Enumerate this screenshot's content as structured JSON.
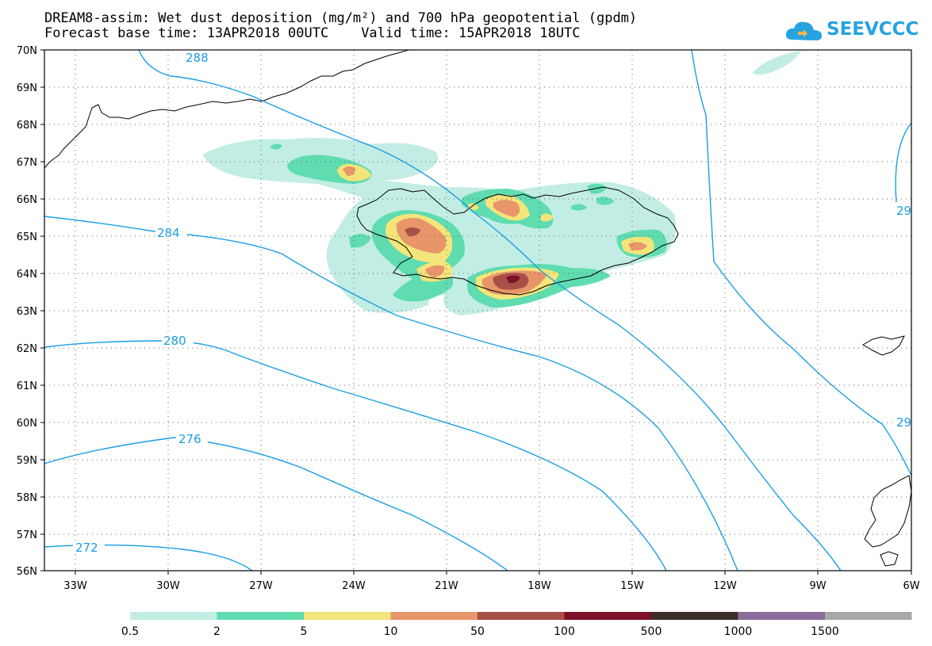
{
  "header": {
    "title_line1": "DREAM8-assim: Wet dust deposition (mg/m²) and 700 hPa geopotential (gpdm)",
    "base_time_label": "Forecast base time: 13APR2018 00UTC",
    "valid_time_label": "Valid time: 15APR2018 18UTC"
  },
  "logo": {
    "text": "SEEVCCC",
    "color": "#27a3e0"
  },
  "map": {
    "lon_range": [
      -34.0,
      -6.0
    ],
    "lat_range": [
      56.0,
      70.0
    ],
    "lat_ticks": [
      "70N",
      "69N",
      "68N",
      "67N",
      "66N",
      "65N",
      "64N",
      "63N",
      "62N",
      "61N",
      "60N",
      "59N",
      "58N",
      "57N",
      "56N"
    ],
    "lon_ticks": [
      "33W",
      "30W",
      "27W",
      "24W",
      "21W",
      "18W",
      "15W",
      "12W",
      "9W",
      "6W"
    ],
    "grid": "dotted",
    "contour_color": "#1a9ee6",
    "contour_labels": [
      "288",
      "284",
      "280",
      "276",
      "272",
      "29",
      "29"
    ]
  },
  "legend": {
    "labels": [
      "0.5",
      "2",
      "5",
      "10",
      "50",
      "100",
      "500",
      "1000",
      "1500"
    ],
    "colors": [
      "#c2ede4",
      "#5fdcb0",
      "#f4e57a",
      "#e8956a",
      "#a85048",
      "#7e0f28",
      "#3c2e28",
      "#8c6c9c",
      "#a8a8a8"
    ]
  }
}
